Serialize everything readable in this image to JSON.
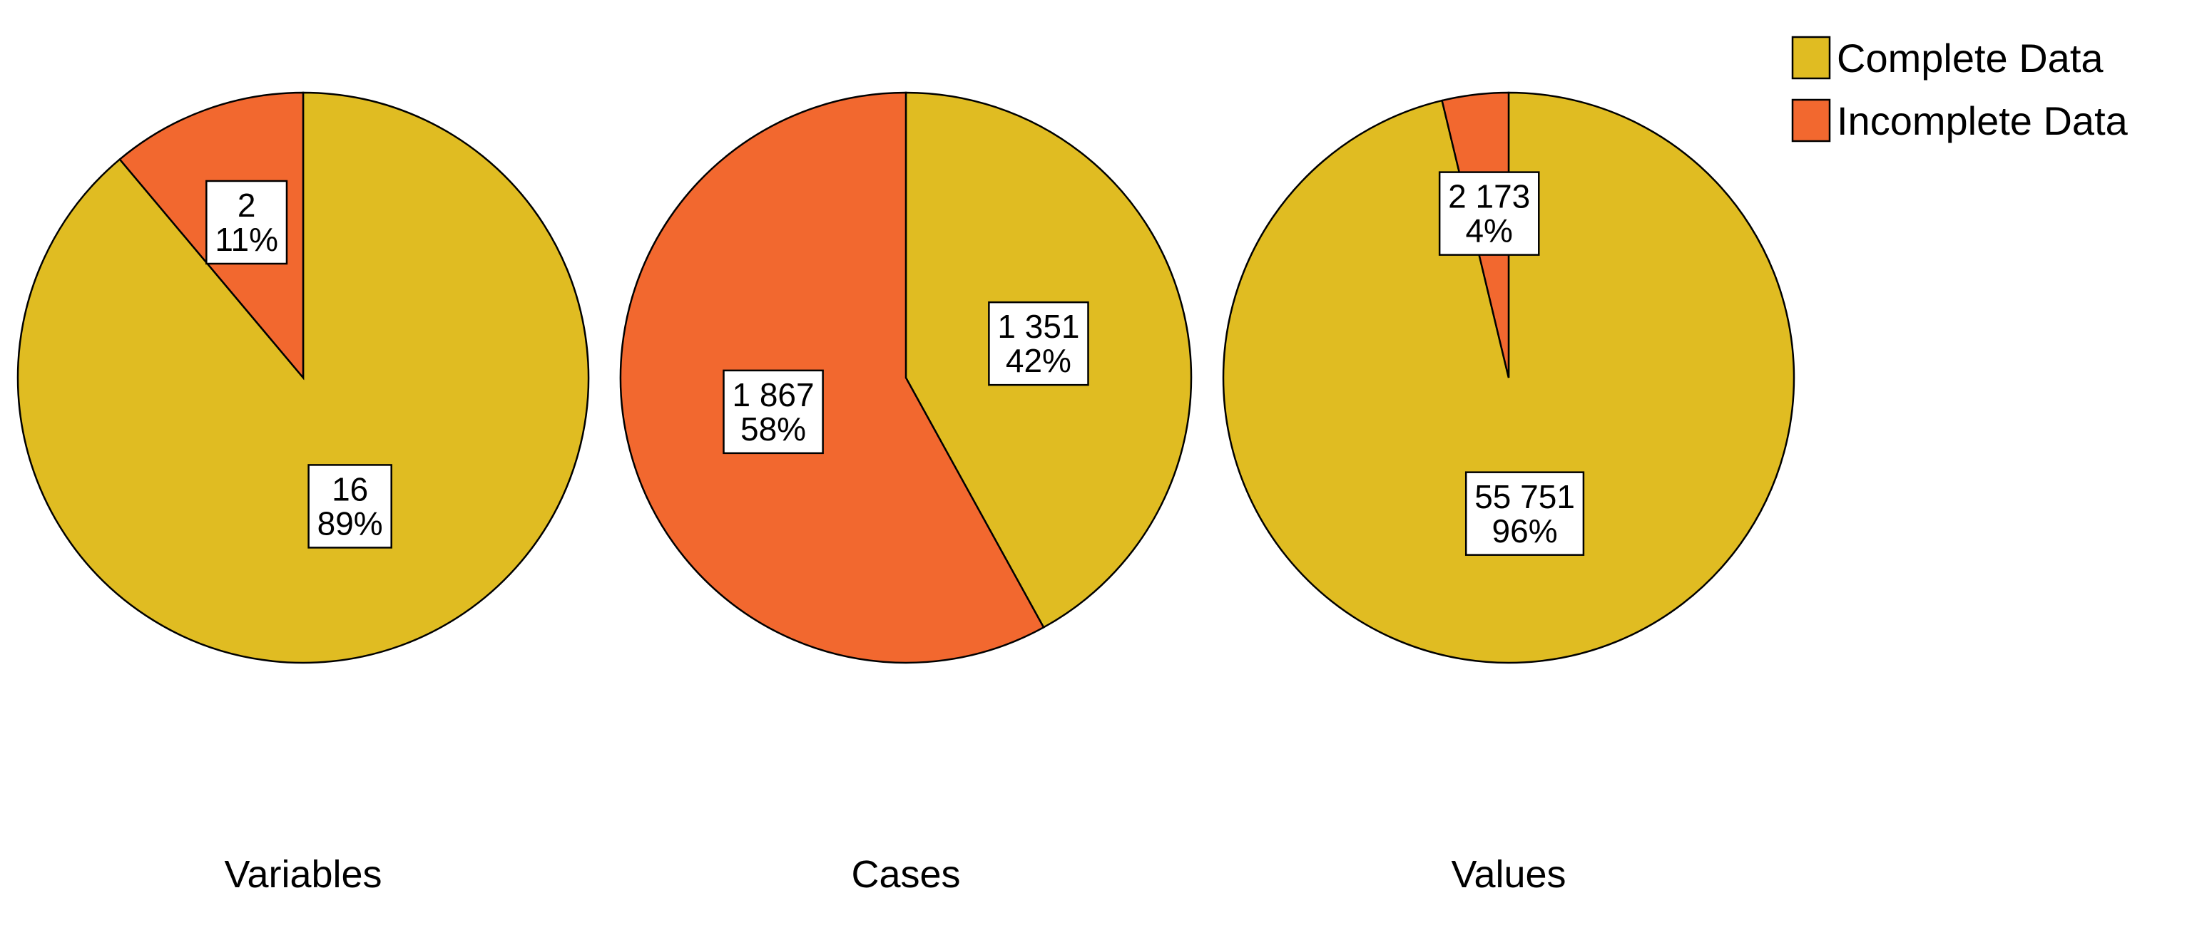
{
  "legend": {
    "placement": "top-right",
    "items": [
      {
        "label": "Complete Data",
        "color": "#E0BC22"
      },
      {
        "label": "Incomplete Data",
        "color": "#F2682F"
      }
    ]
  },
  "chart_data": [
    {
      "type": "pie",
      "title": "Variables",
      "slices": [
        {
          "name": "Complete Data",
          "value": 16,
          "count_label": "16",
          "percent_label": "89%",
          "color": "#E0BC22"
        },
        {
          "name": "Incomplete Data",
          "value": 2,
          "count_label": "2",
          "percent_label": "11%",
          "color": "#F2682F"
        }
      ]
    },
    {
      "type": "pie",
      "title": "Cases",
      "slices": [
        {
          "name": "Complete Data",
          "value": 1351,
          "count_label": "1 351",
          "percent_label": "42%",
          "color": "#E0BC22"
        },
        {
          "name": "Incomplete Data",
          "value": 1867,
          "count_label": "1 867",
          "percent_label": "58%",
          "color": "#F2682F"
        }
      ]
    },
    {
      "type": "pie",
      "title": "Values",
      "slices": [
        {
          "name": "Complete Data",
          "value": 55751,
          "count_label": "55 751",
          "percent_label": "96%",
          "color": "#E0BC22"
        },
        {
          "name": "Incomplete Data",
          "value": 2173,
          "count_label": "2 173",
          "percent_label": "4%",
          "color": "#F2682F"
        }
      ]
    }
  ]
}
